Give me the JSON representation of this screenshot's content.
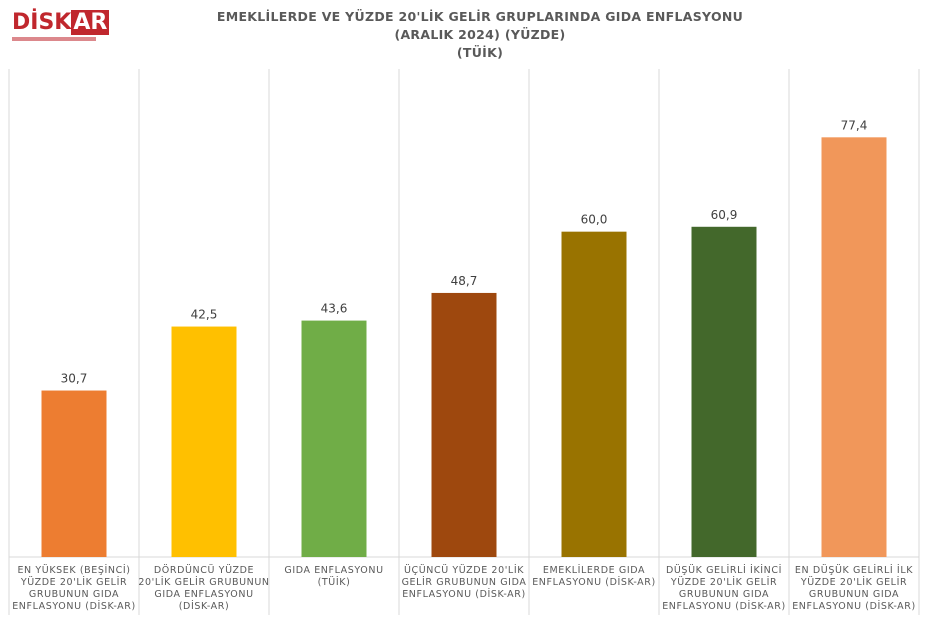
{
  "logo": {
    "text_left": "DİSK",
    "text_right": "AR"
  },
  "chart_data": {
    "type": "bar",
    "title": [
      "EMEKLİLERDE VE YÜZDE 20'LİK GELİR GRUPLARINDA GIDA ENFLASYONU",
      "(ARALIK 2024) (YÜZDE)",
      "(TÜİK)"
    ],
    "categories": [
      [
        "EN YÜKSEK (BEŞİNCİ)",
        "YÜZDE 20'LİK GELİR",
        "GRUBUNUN GIDA",
        "ENFLASYONU (DİSK-AR)"
      ],
      [
        "DÖRDÜNCÜ YÜZDE",
        "20'LİK GELİR GRUBUNUN",
        "GIDA ENFLASYONU",
        "(DİSK-AR)"
      ],
      [
        "GIDA ENFLASYONU",
        "(TÜİK)"
      ],
      [
        "ÜÇÜNCÜ YÜZDE 20'LİK",
        "GELİR GRUBUNUN GIDA",
        "ENFLASYONU (DİSK-AR)"
      ],
      [
        "EMEKLİLERDE GIDA",
        "ENFLASYONU (DİSK-AR)"
      ],
      [
        "DÜŞÜK GELİRLİ İKİNCİ",
        "YÜZDE 20'LİK GELİR",
        "GRUBUNUN GIDA",
        "ENFLASYONU (DİSK-AR)"
      ],
      [
        "EN DÜŞÜK GELİRLİ İLK",
        "YÜZDE 20'LİK GELİR",
        "GRUBUNUN GIDA",
        "ENFLASYONU (DİSK-AR)"
      ]
    ],
    "values": [
      30.7,
      42.5,
      43.6,
      48.7,
      60.0,
      60.9,
      77.4
    ],
    "value_labels": [
      "30,7",
      "42,5",
      "43,6",
      "48,7",
      "60,0",
      "60,9",
      "77,4"
    ],
    "colors": [
      "#ed7d31",
      "#ffc000",
      "#70ad47",
      "#9e480e",
      "#997300",
      "#43682b",
      "#f1975a"
    ],
    "ylim": [
      0,
      90
    ],
    "grid": "vertical separators",
    "legend": "none"
  }
}
